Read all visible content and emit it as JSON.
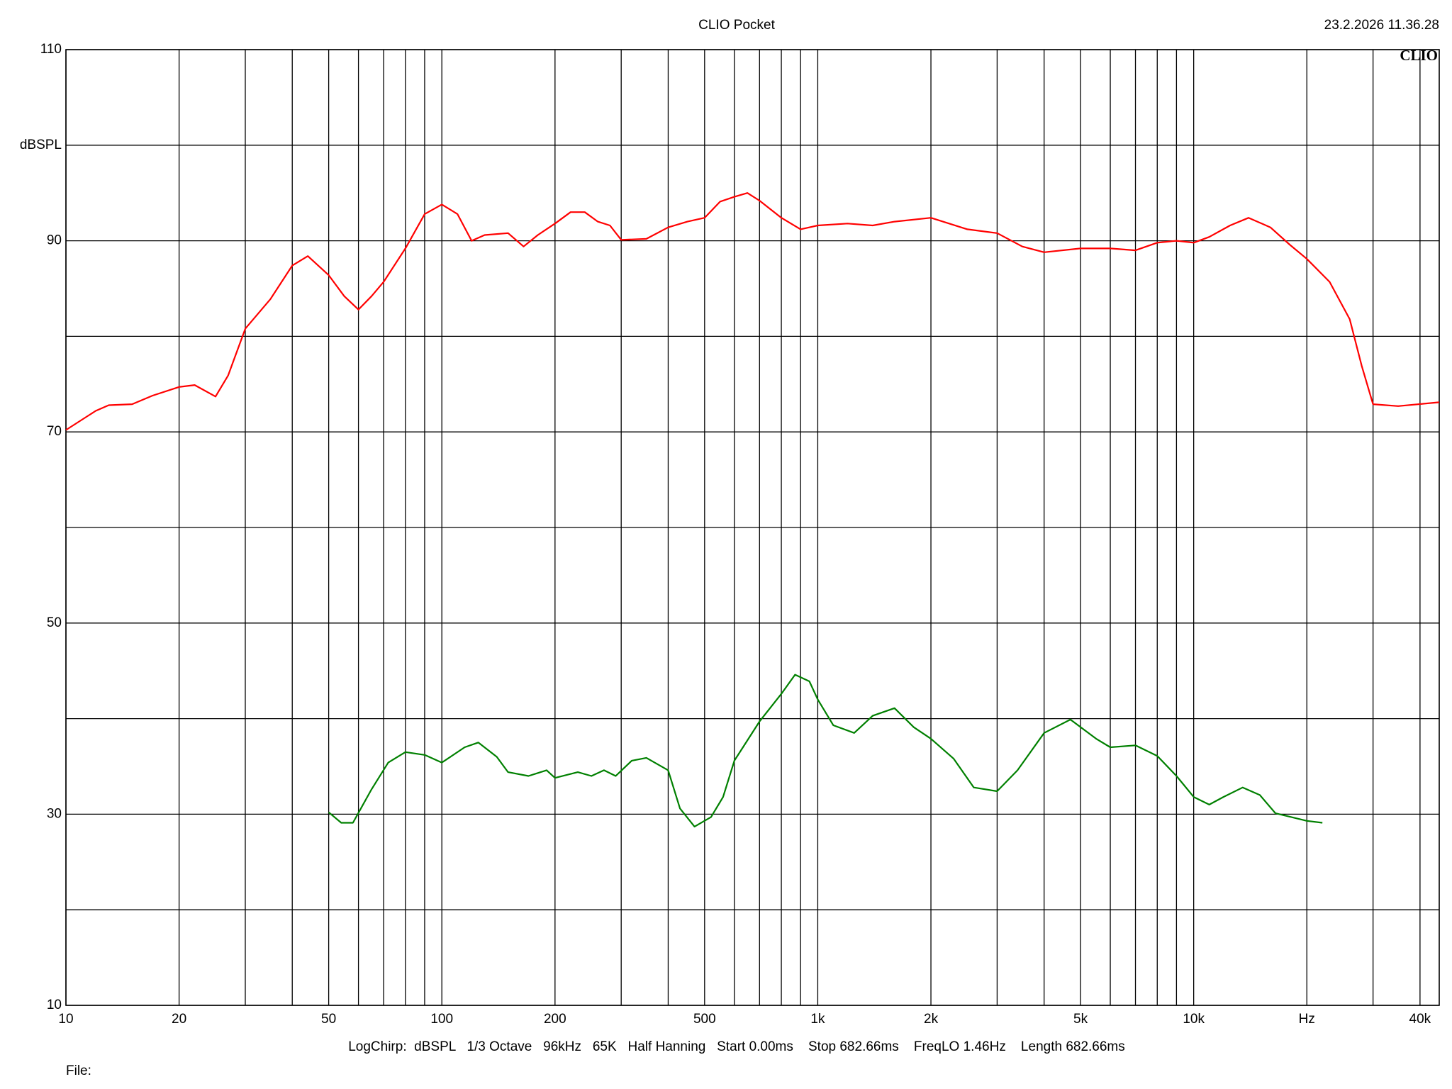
{
  "chart_data": {
    "type": "line",
    "title": "CLIO Pocket",
    "timestamp": "23.2.2026 11.36.28",
    "logo": "CLIO",
    "footer": "LogChirp:  dBSPL   1/3 Octave   96kHz   65K   Half Hanning   Start 0.00ms    Stop 682.66ms    FreqLO 1.46Hz    Length 682.66ms",
    "file_label": "File:",
    "xscale": "log",
    "grid": true,
    "xlim": [
      10,
      45000
    ],
    "xticks": [
      10,
      20,
      50,
      100,
      200,
      500,
      {
        "value": 1000,
        "label": "1k"
      },
      {
        "value": 2000,
        "label": "2k"
      },
      {
        "value": 5000,
        "label": "5k"
      },
      {
        "value": 10000,
        "label": "10k"
      },
      {
        "value": 20000,
        "label": "Hz"
      },
      {
        "value": 40000,
        "label": "40k"
      }
    ],
    "minor_xticks": [
      30,
      40,
      60,
      70,
      80,
      90,
      300,
      400,
      600,
      700,
      800,
      900,
      3000,
      4000,
      6000,
      7000,
      8000,
      9000,
      30000
    ],
    "ylim": [
      10,
      110
    ],
    "yticks": [
      10,
      30,
      50,
      70,
      90,
      {
        "value": 100,
        "label": "dBSPL"
      },
      110
    ],
    "minor_yticks": [
      20,
      40,
      60,
      80
    ],
    "series": [
      {
        "color": "#ff0000",
        "x": [
          10,
          12,
          13,
          15,
          17,
          20,
          22,
          25,
          27,
          30,
          35,
          40,
          44,
          50,
          55,
          60,
          65,
          70,
          80,
          90,
          100,
          110,
          120,
          130,
          150,
          165,
          180,
          200,
          220,
          240,
          260,
          280,
          300,
          350,
          400,
          450,
          500,
          550,
          600,
          650,
          700,
          800,
          900,
          1000,
          1200,
          1400,
          1600,
          2000,
          2500,
          3000,
          3500,
          4000,
          5000,
          6000,
          7000,
          8000,
          9000,
          10000,
          11000,
          12500,
          14000,
          16000,
          18000,
          20000,
          23000,
          26000,
          28000,
          30000,
          35000,
          45000
        ],
        "values": [
          70.2,
          72.2,
          72.8,
          72.9,
          73.8,
          74.7,
          74.9,
          73.7,
          75.9,
          80.8,
          83.9,
          87.4,
          88.4,
          86.4,
          84.2,
          82.8,
          84.2,
          85.7,
          89.2,
          92.8,
          93.8,
          92.8,
          90.0,
          90.6,
          90.8,
          89.4,
          90.6,
          91.8,
          93.0,
          93.0,
          92.0,
          91.6,
          90.1,
          90.2,
          91.4,
          92.0,
          92.4,
          94.1,
          94.6,
          95.0,
          94.2,
          92.4,
          91.2,
          91.6,
          91.8,
          91.6,
          92.0,
          92.4,
          91.2,
          90.8,
          89.4,
          88.8,
          89.2,
          89.2,
          89.0,
          89.8,
          90.0,
          89.8,
          90.4,
          91.6,
          92.4,
          91.4,
          89.6,
          88.1,
          85.7,
          81.8,
          76.9,
          72.9,
          72.7,
          73.1
        ]
      },
      {
        "color": "#008000",
        "x": [
          50,
          54,
          58,
          65,
          72,
          80,
          90,
          100,
          115,
          125,
          140,
          150,
          170,
          190,
          200,
          230,
          250,
          270,
          290,
          320,
          350,
          400,
          430,
          470,
          520,
          560,
          600,
          700,
          800,
          870,
          950,
          1000,
          1100,
          1250,
          1400,
          1600,
          1800,
          2000,
          2300,
          2600,
          3000,
          3400,
          4000,
          4700,
          5500,
          6000,
          7000,
          8000,
          9000,
          10000,
          11000,
          12000,
          13500,
          15000,
          16500,
          20000,
          22000
        ],
        "values": [
          30.2,
          29.1,
          29.1,
          32.6,
          35.4,
          36.5,
          36.2,
          35.4,
          37.0,
          37.5,
          36.0,
          34.4,
          34.0,
          34.6,
          33.8,
          34.4,
          34.0,
          34.6,
          34.0,
          35.6,
          35.9,
          34.6,
          30.6,
          28.7,
          29.7,
          31.8,
          35.6,
          39.7,
          42.6,
          44.6,
          43.9,
          42.0,
          39.3,
          38.5,
          40.3,
          41.1,
          39.1,
          37.9,
          35.8,
          32.8,
          32.4,
          34.6,
          38.5,
          39.9,
          37.9,
          37.0,
          37.2,
          36.1,
          34.0,
          31.8,
          31.0,
          31.8,
          32.8,
          32.0,
          30.1,
          29.3,
          29.1
        ]
      }
    ]
  }
}
